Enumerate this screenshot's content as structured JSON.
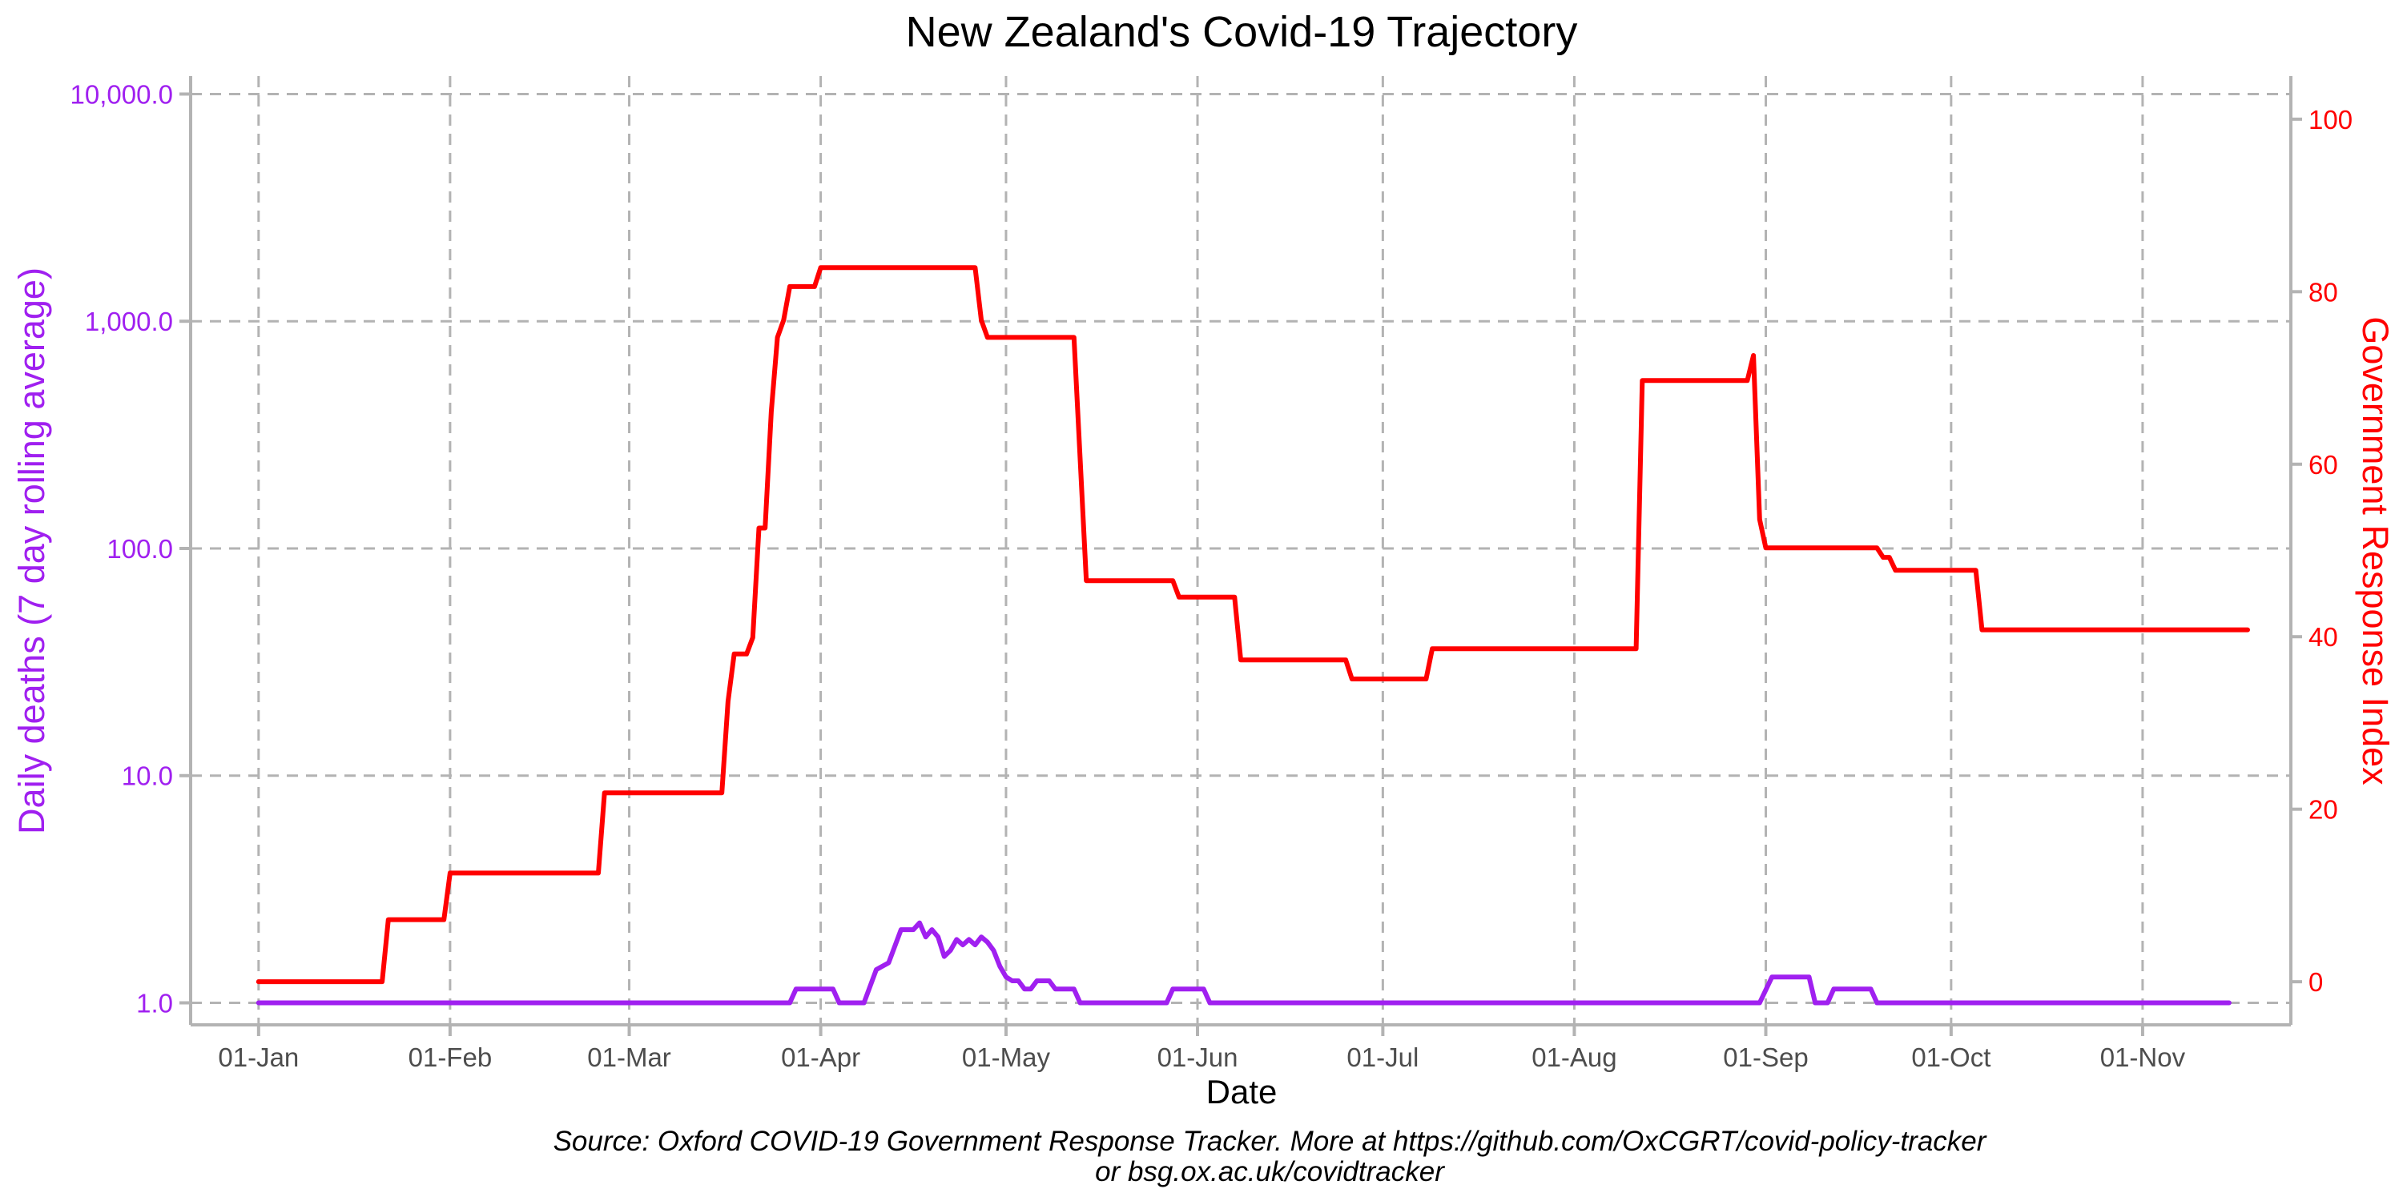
{
  "chart_data": {
    "type": "line",
    "title": "New Zealand's Covid-19 Trajectory",
    "xlabel": "Date",
    "ylabel_left": "Daily deaths (7 day rolling average)",
    "ylabel_right": "Government Response Index",
    "caption_line1": "Source: Oxford COVID-19 Government Response Tracker. More at https://github.com/OxCGRT/covid-policy-tracker",
    "caption_line2": "or bsg.ox.ac.uk/covidtracker",
    "x_range": [
      "2019-12-21",
      "2020-11-25"
    ],
    "x_ticks": [
      {
        "date": "2020-01-01",
        "label": "01-Jan"
      },
      {
        "date": "2020-02-01",
        "label": "01-Feb"
      },
      {
        "date": "2020-03-01",
        "label": "01-Mar"
      },
      {
        "date": "2020-04-01",
        "label": "01-Apr"
      },
      {
        "date": "2020-05-01",
        "label": "01-May"
      },
      {
        "date": "2020-06-01",
        "label": "01-Jun"
      },
      {
        "date": "2020-07-01",
        "label": "01-Jul"
      },
      {
        "date": "2020-08-01",
        "label": "01-Aug"
      },
      {
        "date": "2020-09-01",
        "label": "01-Sep"
      },
      {
        "date": "2020-10-01",
        "label": "01-Oct"
      },
      {
        "date": "2020-11-01",
        "label": "01-Nov"
      }
    ],
    "y_left": {
      "scale": "log10",
      "range": [
        0.8,
        12000
      ],
      "ticks": [
        {
          "value": 1,
          "label": "1.0"
        },
        {
          "value": 10,
          "label": "10.0"
        },
        {
          "value": 100,
          "label": "100.0"
        },
        {
          "value": 1000,
          "label": "1,000.0"
        },
        {
          "value": 10000,
          "label": "10,000.0"
        }
      ]
    },
    "y_right": {
      "scale": "linear",
      "range": [
        -5,
        105
      ],
      "ticks": [
        {
          "value": 0,
          "label": "0"
        },
        {
          "value": 20,
          "label": "20"
        },
        {
          "value": 40,
          "label": "40"
        },
        {
          "value": 60,
          "label": "60"
        },
        {
          "value": 80,
          "label": "80"
        },
        {
          "value": 100,
          "label": "100"
        }
      ]
    },
    "grid": true,
    "legend": "none",
    "series": [
      {
        "axis": "left",
        "color": "#a020f0",
        "points": [
          [
            "2020-01-01",
            1.0
          ],
          [
            "2020-03-27",
            1.0
          ],
          [
            "2020-03-28",
            1.15
          ],
          [
            "2020-04-03",
            1.15
          ],
          [
            "2020-04-04",
            1.0
          ],
          [
            "2020-04-08",
            1.0
          ],
          [
            "2020-04-10",
            1.4
          ],
          [
            "2020-04-12",
            1.5
          ],
          [
            "2020-04-14",
            2.1
          ],
          [
            "2020-04-16",
            2.1
          ],
          [
            "2020-04-17",
            2.25
          ],
          [
            "2020-04-18",
            1.95
          ],
          [
            "2020-04-19",
            2.1
          ],
          [
            "2020-04-20",
            1.95
          ],
          [
            "2020-04-21",
            1.6
          ],
          [
            "2020-04-22",
            1.7
          ],
          [
            "2020-04-23",
            1.9
          ],
          [
            "2020-04-24",
            1.8
          ],
          [
            "2020-04-25",
            1.9
          ],
          [
            "2020-04-26",
            1.8
          ],
          [
            "2020-04-27",
            1.95
          ],
          [
            "2020-04-28",
            1.85
          ],
          [
            "2020-04-29",
            1.7
          ],
          [
            "2020-04-30",
            1.45
          ],
          [
            "2020-05-01",
            1.3
          ],
          [
            "2020-05-02",
            1.25
          ],
          [
            "2020-05-03",
            1.25
          ],
          [
            "2020-05-04",
            1.15
          ],
          [
            "2020-05-05",
            1.15
          ],
          [
            "2020-05-06",
            1.25
          ],
          [
            "2020-05-08",
            1.25
          ],
          [
            "2020-05-09",
            1.15
          ],
          [
            "2020-05-12",
            1.15
          ],
          [
            "2020-05-13",
            1.0
          ],
          [
            "2020-05-27",
            1.0
          ],
          [
            "2020-05-28",
            1.15
          ],
          [
            "2020-06-02",
            1.15
          ],
          [
            "2020-06-03",
            1.0
          ],
          [
            "2020-08-31",
            1.0
          ],
          [
            "2020-09-02",
            1.3
          ],
          [
            "2020-09-08",
            1.3
          ],
          [
            "2020-09-09",
            1.0
          ],
          [
            "2020-09-11",
            1.0
          ],
          [
            "2020-09-12",
            1.15
          ],
          [
            "2020-09-18",
            1.15
          ],
          [
            "2020-09-19",
            1.0
          ],
          [
            "2020-11-15",
            1.0
          ]
        ]
      },
      {
        "axis": "right",
        "color": "#ff0000",
        "points": [
          [
            "2020-01-01",
            0
          ],
          [
            "2020-01-21",
            0
          ],
          [
            "2020-01-22",
            7.2
          ],
          [
            "2020-01-31",
            7.2
          ],
          [
            "2020-02-01",
            12.6
          ],
          [
            "2020-02-25",
            12.6
          ],
          [
            "2020-02-26",
            21.9
          ],
          [
            "2020-03-16",
            21.9
          ],
          [
            "2020-03-17",
            32.5
          ],
          [
            "2020-03-18",
            38.0
          ],
          [
            "2020-03-20",
            38.0
          ],
          [
            "2020-03-21",
            39.9
          ],
          [
            "2020-03-22",
            52.6
          ],
          [
            "2020-03-23",
            52.6
          ],
          [
            "2020-03-24",
            66.1
          ],
          [
            "2020-03-25",
            74.7
          ],
          [
            "2020-03-26",
            76.7
          ],
          [
            "2020-03-27",
            80.6
          ],
          [
            "2020-03-31",
            80.6
          ],
          [
            "2020-04-01",
            82.8
          ],
          [
            "2020-04-26",
            82.8
          ],
          [
            "2020-04-27",
            76.7
          ],
          [
            "2020-04-28",
            74.7
          ],
          [
            "2020-05-12",
            74.7
          ],
          [
            "2020-05-14",
            46.5
          ],
          [
            "2020-05-28",
            46.5
          ],
          [
            "2020-05-29",
            44.6
          ],
          [
            "2020-06-07",
            44.6
          ],
          [
            "2020-06-08",
            37.3
          ],
          [
            "2020-06-25",
            37.3
          ],
          [
            "2020-06-26",
            35.1
          ],
          [
            "2020-07-08",
            35.1
          ],
          [
            "2020-07-09",
            38.6
          ],
          [
            "2020-08-11",
            38.6
          ],
          [
            "2020-08-12",
            69.7
          ],
          [
            "2020-08-29",
            69.7
          ],
          [
            "2020-08-30",
            72.6
          ],
          [
            "2020-08-31",
            53.6
          ],
          [
            "2020-09-01",
            50.3
          ],
          [
            "2020-09-19",
            50.3
          ],
          [
            "2020-09-20",
            49.2
          ],
          [
            "2020-09-21",
            49.2
          ],
          [
            "2020-09-22",
            47.7
          ],
          [
            "2020-10-05",
            47.7
          ],
          [
            "2020-10-06",
            40.8
          ],
          [
            "2020-11-18",
            40.8
          ]
        ]
      }
    ]
  },
  "colors": {
    "left_axis": "#a020f0",
    "right_axis": "#ff0000",
    "grid": "#b3b3b3"
  }
}
